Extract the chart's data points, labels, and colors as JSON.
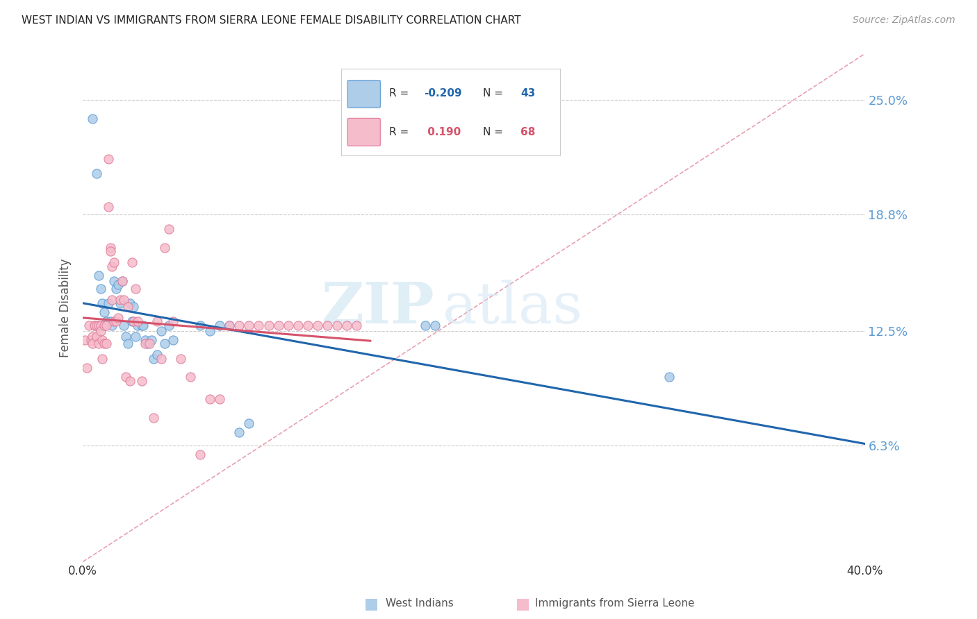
{
  "title": "WEST INDIAN VS IMMIGRANTS FROM SIERRA LEONE FEMALE DISABILITY CORRELATION CHART",
  "source": "Source: ZipAtlas.com",
  "ylabel": "Female Disability",
  "yticks": [
    "6.3%",
    "12.5%",
    "18.8%",
    "25.0%"
  ],
  "ytick_vals": [
    0.063,
    0.125,
    0.188,
    0.25
  ],
  "xmin": 0.0,
  "xmax": 0.4,
  "ymin": 0.0,
  "ymax": 0.275,
  "color_blue": "#aecde8",
  "color_pink": "#f5bccb",
  "color_blue_dark": "#5b9bd5",
  "color_pink_dark": "#e07a9a",
  "trend_blue_color": "#2166ac",
  "trend_pink_color": "#d6536b",
  "trend_diag_color": "#e8a0b0",
  "west_indians_x": [
    0.005,
    0.007,
    0.008,
    0.009,
    0.01,
    0.011,
    0.012,
    0.013,
    0.014,
    0.015,
    0.016,
    0.017,
    0.018,
    0.019,
    0.02,
    0.021,
    0.022,
    0.023,
    0.024,
    0.025,
    0.026,
    0.027,
    0.028,
    0.03,
    0.031,
    0.032,
    0.033,
    0.035,
    0.036,
    0.038,
    0.04,
    0.042,
    0.044,
    0.046,
    0.06,
    0.065,
    0.07,
    0.075,
    0.08,
    0.085,
    0.175,
    0.18,
    0.3
  ],
  "west_indians_y": [
    0.24,
    0.21,
    0.155,
    0.148,
    0.14,
    0.135,
    0.13,
    0.14,
    0.13,
    0.128,
    0.152,
    0.148,
    0.15,
    0.14,
    0.152,
    0.128,
    0.122,
    0.118,
    0.14,
    0.13,
    0.138,
    0.122,
    0.128,
    0.128,
    0.128,
    0.12,
    0.118,
    0.12,
    0.11,
    0.112,
    0.125,
    0.118,
    0.128,
    0.12,
    0.128,
    0.125,
    0.128,
    0.128,
    0.07,
    0.075,
    0.128,
    0.128,
    0.1
  ],
  "sierra_leone_x": [
    0.001,
    0.002,
    0.003,
    0.004,
    0.005,
    0.005,
    0.006,
    0.006,
    0.007,
    0.007,
    0.008,
    0.008,
    0.009,
    0.009,
    0.01,
    0.01,
    0.011,
    0.011,
    0.012,
    0.012,
    0.013,
    0.013,
    0.014,
    0.014,
    0.015,
    0.015,
    0.016,
    0.016,
    0.017,
    0.018,
    0.019,
    0.02,
    0.021,
    0.022,
    0.023,
    0.024,
    0.025,
    0.026,
    0.027,
    0.028,
    0.03,
    0.032,
    0.034,
    0.036,
    0.038,
    0.04,
    0.042,
    0.044,
    0.046,
    0.05,
    0.055,
    0.06,
    0.065,
    0.07,
    0.075,
    0.08,
    0.085,
    0.09,
    0.095,
    0.1,
    0.105,
    0.11,
    0.115,
    0.12,
    0.125,
    0.13,
    0.135,
    0.14
  ],
  "sierra_leone_y": [
    0.12,
    0.105,
    0.128,
    0.12,
    0.122,
    0.118,
    0.128,
    0.128,
    0.128,
    0.122,
    0.128,
    0.118,
    0.128,
    0.125,
    0.11,
    0.12,
    0.128,
    0.118,
    0.128,
    0.118,
    0.218,
    0.192,
    0.17,
    0.168,
    0.16,
    0.142,
    0.162,
    0.13,
    0.13,
    0.132,
    0.142,
    0.152,
    0.142,
    0.1,
    0.138,
    0.098,
    0.162,
    0.13,
    0.148,
    0.13,
    0.098,
    0.118,
    0.118,
    0.078,
    0.13,
    0.11,
    0.17,
    0.18,
    0.13,
    0.11,
    0.1,
    0.058,
    0.088,
    0.088,
    0.128,
    0.128,
    0.128,
    0.128,
    0.128,
    0.128,
    0.128,
    0.128,
    0.128,
    0.128,
    0.128,
    0.128,
    0.128,
    0.128
  ]
}
